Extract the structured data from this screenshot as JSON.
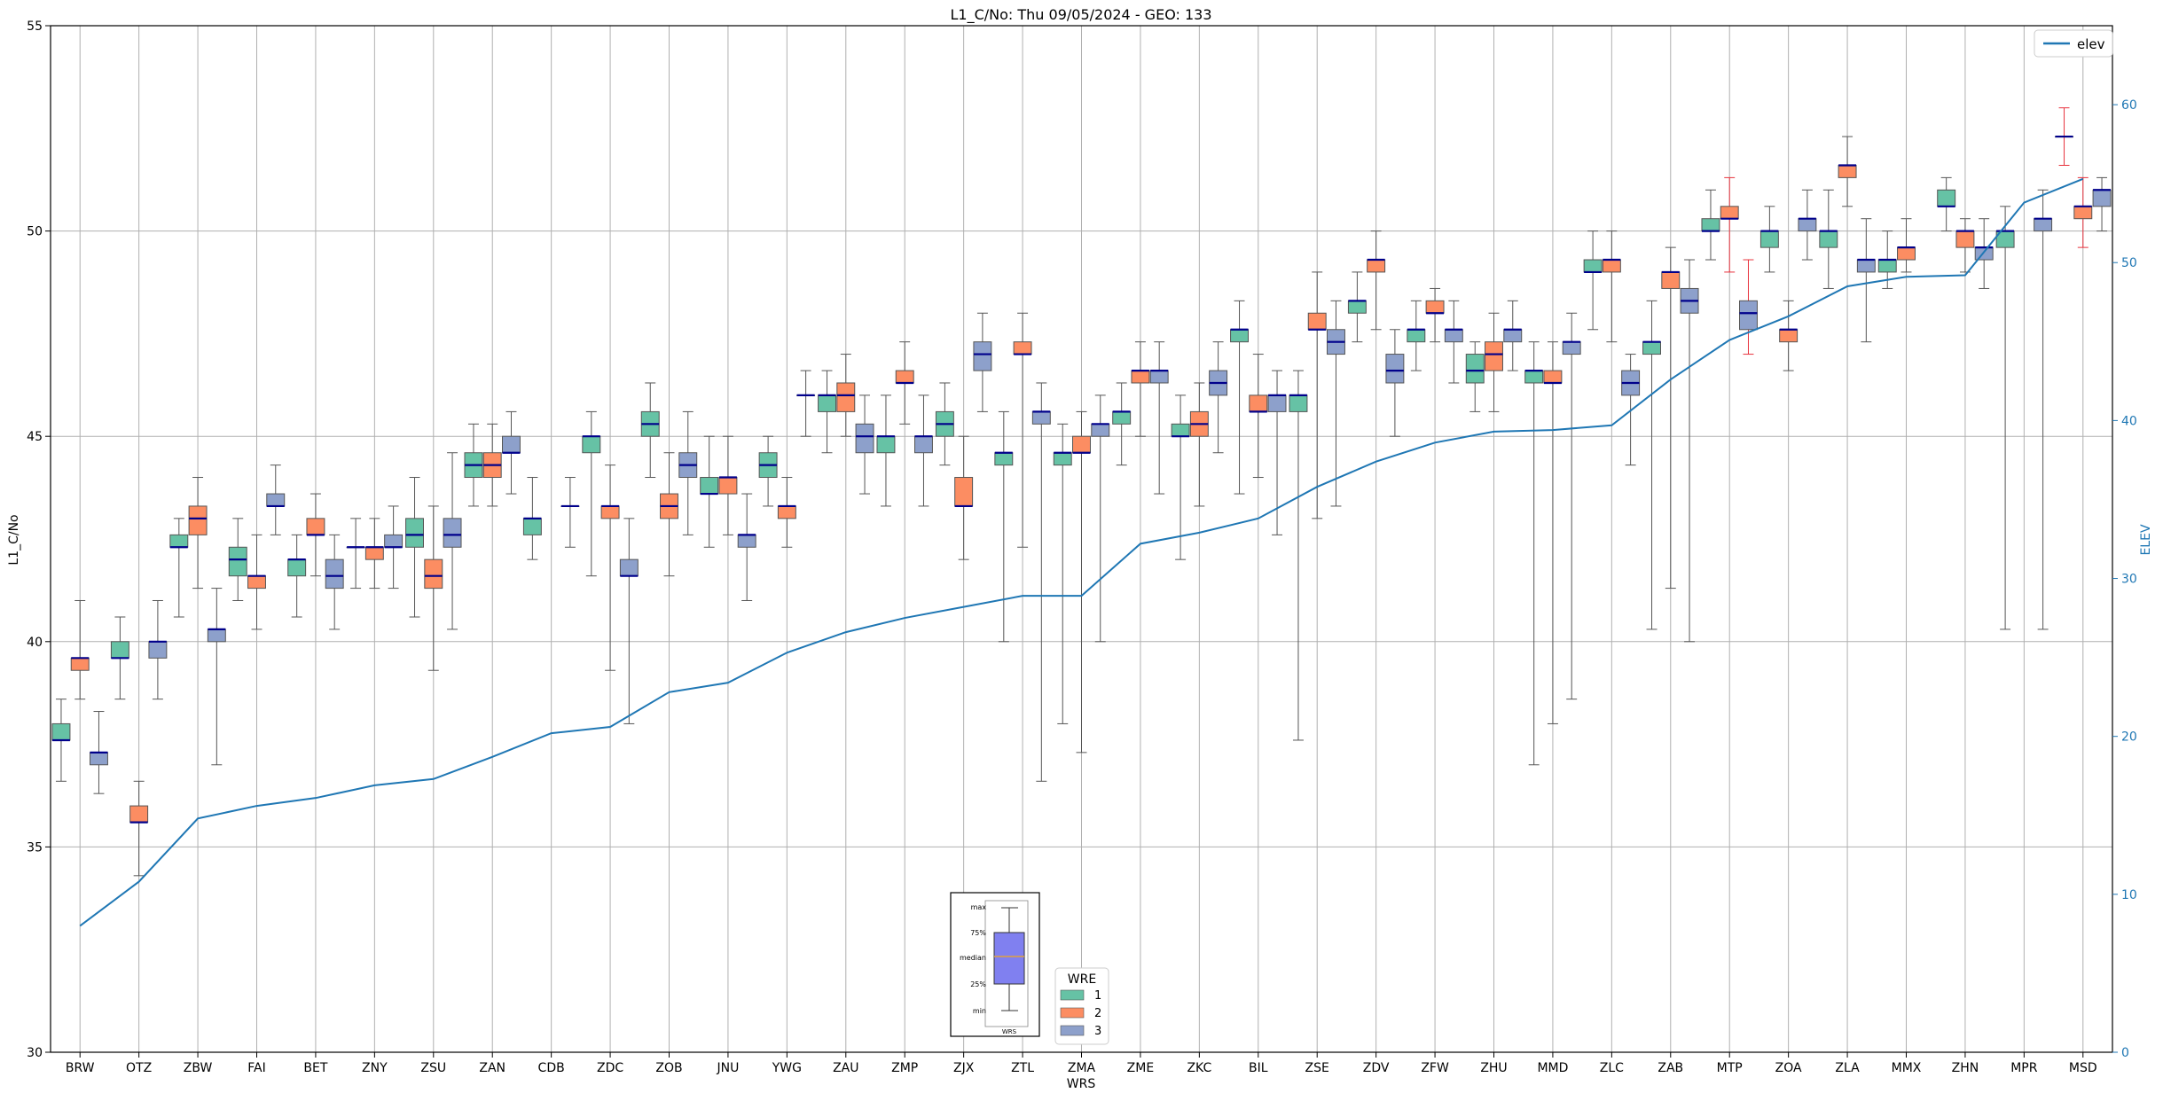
{
  "chart_data": {
    "type": "box",
    "title": "L1_C/No: Thu 09/05/2024 - GEO: 133",
    "xlabel": "WRS",
    "ylabel": "L1_C/No",
    "y2label": "ELEV",
    "ylim": [
      30,
      55
    ],
    "y2lim": [
      0,
      65
    ],
    "yticks": [
      30,
      35,
      40,
      45,
      50,
      55
    ],
    "y2ticks": [
      0,
      10,
      20,
      30,
      40,
      50,
      60
    ],
    "grid": true,
    "categories": [
      "BRW",
      "OTZ",
      "ZBW",
      "FAI",
      "BET",
      "ZNY",
      "ZSU",
      "ZAN",
      "CDB",
      "ZDC",
      "ZOB",
      "JNU",
      "YWG",
      "ZAU",
      "ZMP",
      "ZJX",
      "ZTL",
      "ZMA",
      "ZME",
      "ZKC",
      "BIL",
      "ZSE",
      "ZDV",
      "ZFW",
      "ZHU",
      "MMD",
      "ZLC",
      "ZAB",
      "MTP",
      "ZOA",
      "ZLA",
      "MMX",
      "ZHN",
      "MPR",
      "MSD"
    ],
    "legend_wre": {
      "title": "WRE",
      "location": "lower-center",
      "entries": [
        {
          "label": "1",
          "color": "#66c2a5"
        },
        {
          "label": "2",
          "color": "#fc8d62"
        },
        {
          "label": "3",
          "color": "#8da0cb"
        }
      ]
    },
    "legend_elev": {
      "label": "elev",
      "color": "#1f77b4",
      "location": "upper-right"
    },
    "box_key": {
      "labels": [
        "max",
        "75%",
        "median",
        "25%",
        "min"
      ],
      "xlabel": "WRS",
      "color": "#8080f0"
    },
    "colors": {
      "wre1": "#66c2a5",
      "wre2": "#fc8d62",
      "wre3": "#8da0cb",
      "median": "#00008b",
      "elev": "#1f77b4",
      "outlier_whisker": "#e8323c"
    },
    "elev": [
      8,
      10.8,
      14.8,
      15.6,
      16.1,
      16.9,
      17.3,
      18.7,
      20.2,
      20.6,
      22.8,
      23.4,
      25.3,
      26.6,
      27.5,
      28.2,
      28.9,
      28.9,
      32.2,
      32.9,
      33.8,
      35.8,
      37.4,
      38.6,
      39.3,
      39.4,
      39.7,
      42.6,
      45.1,
      46.6,
      48.5,
      49.1,
      49.2,
      53.8,
      55.3
    ],
    "series": [
      {
        "name": "1",
        "boxes": [
          {
            "cat": 0,
            "min": 36.6,
            "q1": 37.6,
            "med": 37.6,
            "q3": 38.0,
            "max": 38.6
          },
          {
            "cat": 1,
            "min": 38.6,
            "q1": 39.6,
            "med": 39.6,
            "q3": 40.0,
            "max": 40.6
          },
          {
            "cat": 2,
            "min": 40.6,
            "q1": 42.3,
            "med": 42.3,
            "q3": 42.6,
            "max": 43.0
          },
          {
            "cat": 3,
            "min": 41.0,
            "q1": 41.6,
            "med": 42.0,
            "q3": 42.3,
            "max": 43.0
          },
          {
            "cat": 4,
            "min": 40.6,
            "q1": 41.6,
            "med": 42.0,
            "q3": 42.0,
            "max": 42.6
          },
          {
            "cat": 5,
            "min": 41.3,
            "q1": 42.3,
            "med": 42.3,
            "q3": 42.3,
            "max": 43.0
          },
          {
            "cat": 6,
            "min": 40.6,
            "q1": 42.3,
            "med": 42.6,
            "q3": 43.0,
            "max": 44.0
          },
          {
            "cat": 7,
            "min": 43.3,
            "q1": 44.0,
            "med": 44.3,
            "q3": 44.6,
            "max": 45.3
          },
          {
            "cat": 8,
            "min": 42.0,
            "q1": 42.6,
            "med": 43.0,
            "q3": 43.0,
            "max": 44.0
          },
          {
            "cat": 9,
            "min": 41.6,
            "q1": 44.6,
            "med": 45.0,
            "q3": 45.0,
            "max": 45.6
          },
          {
            "cat": 10,
            "min": 44.0,
            "q1": 45.0,
            "med": 45.3,
            "q3": 45.6,
            "max": 46.3
          },
          {
            "cat": 11,
            "min": 42.3,
            "q1": 43.6,
            "med": 43.6,
            "q3": 44.0,
            "max": 45.0
          },
          {
            "cat": 12,
            "min": 43.3,
            "q1": 44.0,
            "med": 44.3,
            "q3": 44.6,
            "max": 45.0
          },
          {
            "cat": 13,
            "min": 44.6,
            "q1": 45.6,
            "med": 46.0,
            "q3": 46.0,
            "max": 46.6
          },
          {
            "cat": 14,
            "min": 43.3,
            "q1": 44.6,
            "med": 45.0,
            "q3": 45.0,
            "max": 46.0
          },
          {
            "cat": 15,
            "min": 44.3,
            "q1": 45.0,
            "med": 45.3,
            "q3": 45.6,
            "max": 46.3
          },
          {
            "cat": 16,
            "min": 40.0,
            "q1": 44.3,
            "med": 44.6,
            "q3": 44.6,
            "max": 45.6
          },
          {
            "cat": 17,
            "min": 38.0,
            "q1": 44.3,
            "med": 44.6,
            "q3": 44.6,
            "max": 45.3
          },
          {
            "cat": 18,
            "min": 44.3,
            "q1": 45.3,
            "med": 45.6,
            "q3": 45.6,
            "max": 46.3
          },
          {
            "cat": 19,
            "min": 42.0,
            "q1": 45.0,
            "med": 45.0,
            "q3": 45.3,
            "max": 46.0
          },
          {
            "cat": 20,
            "min": 43.6,
            "q1": 47.3,
            "med": 47.6,
            "q3": 47.6,
            "max": 48.3
          },
          {
            "cat": 21,
            "min": 37.6,
            "q1": 45.6,
            "med": 46.0,
            "q3": 46.0,
            "max": 46.6
          },
          {
            "cat": 22,
            "min": 47.3,
            "q1": 48.0,
            "med": 48.3,
            "q3": 48.3,
            "max": 49.0
          },
          {
            "cat": 23,
            "min": 46.6,
            "q1": 47.3,
            "med": 47.6,
            "q3": 47.6,
            "max": 48.3
          },
          {
            "cat": 24,
            "min": 45.6,
            "q1": 46.3,
            "med": 46.6,
            "q3": 47.0,
            "max": 47.3
          },
          {
            "cat": 25,
            "min": 37.0,
            "q1": 46.3,
            "med": 46.6,
            "q3": 46.6,
            "max": 47.3
          },
          {
            "cat": 26,
            "min": 47.6,
            "q1": 49.0,
            "med": 49.0,
            "q3": 49.3,
            "max": 50.0
          },
          {
            "cat": 27,
            "min": 40.3,
            "q1": 47.0,
            "med": 47.3,
            "q3": 47.3,
            "max": 48.3
          },
          {
            "cat": 28,
            "min": 49.3,
            "q1": 50.0,
            "med": 50.0,
            "q3": 50.3,
            "max": 51.0
          },
          {
            "cat": 29,
            "min": 49.0,
            "q1": 49.6,
            "med": 50.0,
            "q3": 50.0,
            "max": 50.6
          },
          {
            "cat": 30,
            "min": 48.6,
            "q1": 49.6,
            "med": 50.0,
            "q3": 50.0,
            "max": 51.0
          },
          {
            "cat": 31,
            "min": 48.6,
            "q1": 49.0,
            "med": 49.3,
            "q3": 49.3,
            "max": 50.0
          },
          {
            "cat": 32,
            "min": 50.0,
            "q1": 50.6,
            "med": 50.6,
            "q3": 51.0,
            "max": 51.3
          },
          {
            "cat": 33,
            "min": 40.3,
            "q1": 49.6,
            "med": 50.0,
            "q3": 50.0,
            "max": 50.6
          }
        ]
      },
      {
        "name": "2",
        "boxes": [
          {
            "cat": 0,
            "min": 38.6,
            "q1": 39.3,
            "med": 39.6,
            "q3": 39.6,
            "max": 41.0
          },
          {
            "cat": 1,
            "min": 34.3,
            "q1": 35.6,
            "med": 35.6,
            "q3": 36.0,
            "max": 36.6
          },
          {
            "cat": 2,
            "min": 41.3,
            "q1": 42.6,
            "med": 43.0,
            "q3": 43.3,
            "max": 44.0
          },
          {
            "cat": 3,
            "min": 40.3,
            "q1": 41.3,
            "med": 41.6,
            "q3": 41.6,
            "max": 42.6
          },
          {
            "cat": 4,
            "min": 41.6,
            "q1": 42.6,
            "med": 42.6,
            "q3": 43.0,
            "max": 43.6
          },
          {
            "cat": 5,
            "min": 41.3,
            "q1": 42.0,
            "med": 42.3,
            "q3": 42.3,
            "max": 43.0
          },
          {
            "cat": 6,
            "min": 39.3,
            "q1": 41.3,
            "med": 41.6,
            "q3": 42.0,
            "max": 43.3
          },
          {
            "cat": 7,
            "min": 43.3,
            "q1": 44.0,
            "med": 44.3,
            "q3": 44.6,
            "max": 45.3
          },
          {
            "cat": 9,
            "min": 39.3,
            "q1": 43.0,
            "med": 43.3,
            "q3": 43.3,
            "max": 44.3
          },
          {
            "cat": 10,
            "min": 41.6,
            "q1": 43.0,
            "med": 43.3,
            "q3": 43.6,
            "max": 44.6
          },
          {
            "cat": 11,
            "min": 42.6,
            "q1": 43.6,
            "med": 44.0,
            "q3": 44.0,
            "max": 45.0
          },
          {
            "cat": 12,
            "min": 42.3,
            "q1": 43.0,
            "med": 43.3,
            "q3": 43.3,
            "max": 44.0
          },
          {
            "cat": 13,
            "min": 45.0,
            "q1": 45.6,
            "med": 46.0,
            "q3": 46.3,
            "max": 47.0
          },
          {
            "cat": 14,
            "min": 45.3,
            "q1": 46.3,
            "med": 46.3,
            "q3": 46.6,
            "max": 47.3
          },
          {
            "cat": 15,
            "min": 42.0,
            "q1": 43.3,
            "med": 43.3,
            "q3": 44.0,
            "max": 45.0
          },
          {
            "cat": 16,
            "min": 42.3,
            "q1": 47.0,
            "med": 47.0,
            "q3": 47.3,
            "max": 48.0
          },
          {
            "cat": 17,
            "min": 37.3,
            "q1": 44.6,
            "med": 44.6,
            "q3": 45.0,
            "max": 45.6
          },
          {
            "cat": 18,
            "min": 45.0,
            "q1": 46.3,
            "med": 46.6,
            "q3": 46.6,
            "max": 47.3
          },
          {
            "cat": 19,
            "min": 43.3,
            "q1": 45.0,
            "med": 45.3,
            "q3": 45.6,
            "max": 46.3
          },
          {
            "cat": 20,
            "min": 44.0,
            "q1": 45.6,
            "med": 45.6,
            "q3": 46.0,
            "max": 47.0
          },
          {
            "cat": 21,
            "min": 43.0,
            "q1": 47.6,
            "med": 47.6,
            "q3": 48.0,
            "max": 49.0
          },
          {
            "cat": 22,
            "min": 47.6,
            "q1": 49.0,
            "med": 49.3,
            "q3": 49.3,
            "max": 50.0
          },
          {
            "cat": 23,
            "min": 47.3,
            "q1": 48.0,
            "med": 48.0,
            "q3": 48.3,
            "max": 48.6
          },
          {
            "cat": 24,
            "min": 45.6,
            "q1": 46.6,
            "med": 47.0,
            "q3": 47.3,
            "max": 48.0
          },
          {
            "cat": 25,
            "min": 38.0,
            "q1": 46.3,
            "med": 46.3,
            "q3": 46.6,
            "max": 47.3
          },
          {
            "cat": 26,
            "min": 47.3,
            "q1": 49.0,
            "med": 49.3,
            "q3": 49.3,
            "max": 50.0
          },
          {
            "cat": 27,
            "min": 41.3,
            "q1": 48.6,
            "med": 49.0,
            "q3": 49.0,
            "max": 49.6
          },
          {
            "cat": 28,
            "min": 49.0,
            "q1": 50.3,
            "med": 50.3,
            "q3": 50.6,
            "max": 51.3,
            "whisker_color": "red"
          },
          {
            "cat": 29,
            "min": 46.6,
            "q1": 47.3,
            "med": 47.6,
            "q3": 47.6,
            "max": 48.3
          },
          {
            "cat": 30,
            "min": 50.6,
            "q1": 51.3,
            "med": 51.6,
            "q3": 51.6,
            "max": 52.3
          },
          {
            "cat": 31,
            "min": 49.0,
            "q1": 49.3,
            "med": 49.6,
            "q3": 49.6,
            "max": 50.3
          },
          {
            "cat": 32,
            "min": 49.0,
            "q1": 49.6,
            "med": 50.0,
            "q3": 50.0,
            "max": 50.3
          },
          {
            "cat": 34,
            "min": 49.6,
            "q1": 50.3,
            "med": 50.6,
            "q3": 50.6,
            "max": 51.3,
            "whisker_color": "red"
          },
          {
            "cat": 34,
            "min": 51.6,
            "q1": 52.3,
            "med": 52.3,
            "q3": 52.3,
            "max": 53.0,
            "whisker_color": "red",
            "offset": -1
          }
        ]
      },
      {
        "name": "3",
        "boxes": [
          {
            "cat": 0,
            "min": 36.3,
            "q1": 37.0,
            "med": 37.3,
            "q3": 37.3,
            "max": 38.3
          },
          {
            "cat": 1,
            "min": 38.6,
            "q1": 39.6,
            "med": 40.0,
            "q3": 40.0,
            "max": 41.0
          },
          {
            "cat": 2,
            "min": 37.0,
            "q1": 40.0,
            "med": 40.3,
            "q3": 40.3,
            "max": 41.3
          },
          {
            "cat": 3,
            "min": 42.6,
            "q1": 43.3,
            "med": 43.3,
            "q3": 43.6,
            "max": 44.3
          },
          {
            "cat": 4,
            "min": 40.3,
            "q1": 41.3,
            "med": 41.6,
            "q3": 42.0,
            "max": 42.6
          },
          {
            "cat": 5,
            "min": 41.3,
            "q1": 42.3,
            "med": 42.3,
            "q3": 42.6,
            "max": 43.3
          },
          {
            "cat": 6,
            "min": 40.3,
            "q1": 42.3,
            "med": 42.6,
            "q3": 43.0,
            "max": 44.6
          },
          {
            "cat": 7,
            "min": 43.6,
            "q1": 44.6,
            "med": 44.6,
            "q3": 45.0,
            "max": 45.6
          },
          {
            "cat": 8,
            "min": 42.3,
            "q1": 43.3,
            "med": 43.3,
            "q3": 43.3,
            "max": 44.0
          },
          {
            "cat": 9,
            "min": 38.0,
            "q1": 41.6,
            "med": 41.6,
            "q3": 42.0,
            "max": 43.0
          },
          {
            "cat": 10,
            "min": 42.6,
            "q1": 44.0,
            "med": 44.3,
            "q3": 44.6,
            "max": 45.6
          },
          {
            "cat": 11,
            "min": 41.0,
            "q1": 42.3,
            "med": 42.6,
            "q3": 42.6,
            "max": 43.6
          },
          {
            "cat": 12,
            "min": 45.0,
            "q1": 46.0,
            "med": 46.0,
            "q3": 46.0,
            "max": 46.6
          },
          {
            "cat": 13,
            "min": 43.6,
            "q1": 44.6,
            "med": 45.0,
            "q3": 45.3,
            "max": 46.0
          },
          {
            "cat": 14,
            "min": 43.3,
            "q1": 44.6,
            "med": 45.0,
            "q3": 45.0,
            "max": 46.0
          },
          {
            "cat": 15,
            "min": 45.6,
            "q1": 46.6,
            "med": 47.0,
            "q3": 47.3,
            "max": 48.0
          },
          {
            "cat": 16,
            "min": 36.6,
            "q1": 45.3,
            "med": 45.6,
            "q3": 45.6,
            "max": 46.3
          },
          {
            "cat": 17,
            "min": 40.0,
            "q1": 45.0,
            "med": 45.3,
            "q3": 45.3,
            "max": 46.0
          },
          {
            "cat": 18,
            "min": 43.6,
            "q1": 46.3,
            "med": 46.6,
            "q3": 46.6,
            "max": 47.3
          },
          {
            "cat": 19,
            "min": 44.6,
            "q1": 46.0,
            "med": 46.3,
            "q3": 46.6,
            "max": 47.3
          },
          {
            "cat": 20,
            "min": 42.6,
            "q1": 45.6,
            "med": 46.0,
            "q3": 46.0,
            "max": 46.6
          },
          {
            "cat": 21,
            "min": 43.3,
            "q1": 47.0,
            "med": 47.3,
            "q3": 47.6,
            "max": 48.3
          },
          {
            "cat": 22,
            "min": 45.0,
            "q1": 46.3,
            "med": 46.6,
            "q3": 47.0,
            "max": 47.6
          },
          {
            "cat": 23,
            "min": 46.3,
            "q1": 47.3,
            "med": 47.6,
            "q3": 47.6,
            "max": 48.3
          },
          {
            "cat": 24,
            "min": 46.6,
            "q1": 47.3,
            "med": 47.6,
            "q3": 47.6,
            "max": 48.3
          },
          {
            "cat": 25,
            "min": 38.6,
            "q1": 47.0,
            "med": 47.3,
            "q3": 47.3,
            "max": 48.0
          },
          {
            "cat": 26,
            "min": 44.3,
            "q1": 46.0,
            "med": 46.3,
            "q3": 46.6,
            "max": 47.0
          },
          {
            "cat": 27,
            "min": 40.0,
            "q1": 48.0,
            "med": 48.3,
            "q3": 48.6,
            "max": 49.3
          },
          {
            "cat": 28,
            "min": 47.0,
            "q1": 47.6,
            "med": 48.0,
            "q3": 48.3,
            "max": 49.3,
            "whisker_color": "red"
          },
          {
            "cat": 29,
            "min": 49.3,
            "q1": 50.0,
            "med": 50.3,
            "q3": 50.3,
            "max": 51.0
          },
          {
            "cat": 30,
            "min": 47.3,
            "q1": 49.0,
            "med": 49.3,
            "q3": 49.3,
            "max": 50.3
          },
          {
            "cat": 32,
            "min": 48.6,
            "q1": 49.3,
            "med": 49.6,
            "q3": 49.6,
            "max": 50.3
          },
          {
            "cat": 33,
            "min": 40.3,
            "q1": 50.0,
            "med": 50.3,
            "q3": 50.3,
            "max": 51.0
          },
          {
            "cat": 34,
            "min": 50.0,
            "q1": 50.6,
            "med": 51.0,
            "q3": 51.0,
            "max": 51.3
          }
        ]
      }
    ]
  }
}
